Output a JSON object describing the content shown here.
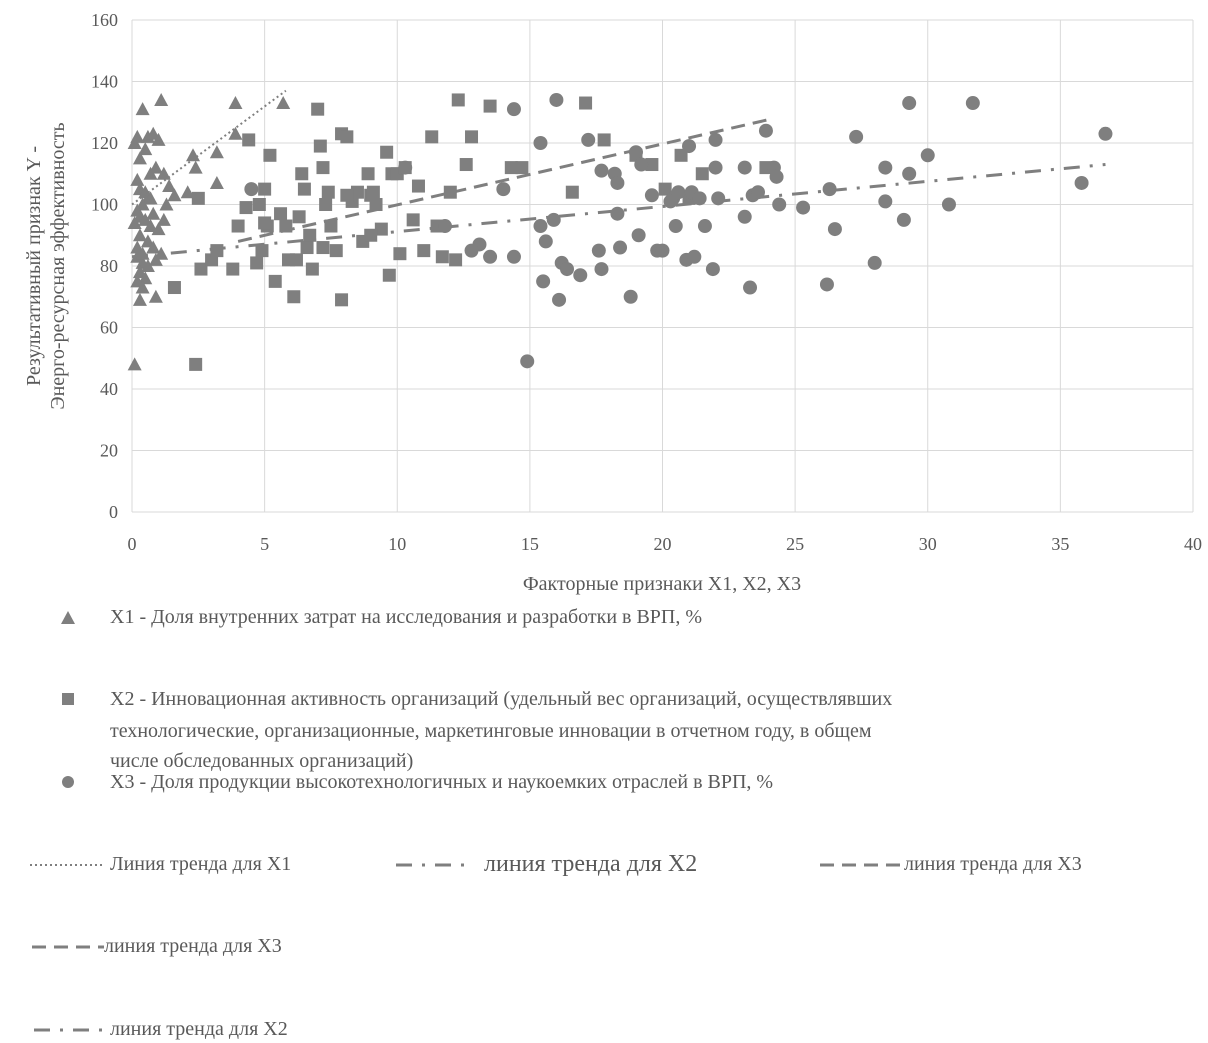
{
  "chart_data": {
    "type": "scatter",
    "xlabel": "Факторные признаки X1, X2, X3",
    "ylabel_lines": [
      "Результативный признак Y -",
      "Энерго-ресурсная  эффективность"
    ],
    "xlim": [
      0,
      40
    ],
    "ylim": [
      0,
      160
    ],
    "xticks": [
      0,
      5,
      10,
      15,
      20,
      25,
      30,
      35,
      40
    ],
    "yticks": [
      0,
      20,
      40,
      60,
      80,
      100,
      120,
      140,
      160
    ],
    "grid": true,
    "legend_position": "bottom",
    "series": [
      {
        "name": "X1 - Доля внутренних  затрат на исследования и разработки в  ВРП, %",
        "marker": "triangle",
        "color": "#7f7f7f",
        "points": [
          [
            0.1,
            120
          ],
          [
            0.2,
            122
          ],
          [
            0.3,
            115
          ],
          [
            0.4,
            131
          ],
          [
            0.6,
            122
          ],
          [
            0.8,
            123
          ],
          [
            1.0,
            121
          ],
          [
            1.1,
            134
          ],
          [
            0.5,
            118
          ],
          [
            0.7,
            110
          ],
          [
            0.2,
            108
          ],
          [
            0.3,
            105
          ],
          [
            0.5,
            104
          ],
          [
            0.6,
            102
          ],
          [
            0.9,
            112
          ],
          [
            1.2,
            110
          ],
          [
            1.4,
            106
          ],
          [
            1.6,
            103
          ],
          [
            0.4,
            100
          ],
          [
            0.2,
            98
          ],
          [
            0.3,
            96
          ],
          [
            0.5,
            95
          ],
          [
            0.7,
            93
          ],
          [
            1.0,
            92
          ],
          [
            1.2,
            95
          ],
          [
            0.1,
            94
          ],
          [
            0.3,
            90
          ],
          [
            0.6,
            88
          ],
          [
            0.8,
            86
          ],
          [
            1.1,
            84
          ],
          [
            0.2,
            83
          ],
          [
            0.4,
            81
          ],
          [
            0.6,
            80
          ],
          [
            0.9,
            82
          ],
          [
            0.3,
            78
          ],
          [
            0.5,
            76
          ],
          [
            0.2,
            75
          ],
          [
            0.4,
            73
          ],
          [
            0.3,
            69
          ],
          [
            0.9,
            70
          ],
          [
            0.1,
            48
          ],
          [
            2.3,
            116
          ],
          [
            2.1,
            104
          ],
          [
            2.4,
            112
          ],
          [
            3.2,
            117
          ],
          [
            3.2,
            107
          ],
          [
            3.9,
            123
          ],
          [
            3.9,
            133
          ],
          [
            5.7,
            133
          ],
          [
            0.2,
            86
          ],
          [
            0.4,
            84
          ],
          [
            0.7,
            102
          ],
          [
            1.3,
            100
          ],
          [
            0.8,
            97
          ]
        ]
      },
      {
        "name": "X2 - Инновационная активность организаций (удельный вес организаций, осуществлявших технологические, организационные, маркетинговые инновации в отчетном году, в общем числе обследованных организаций)",
        "marker": "square",
        "color": "#7f7f7f",
        "points": [
          [
            2.4,
            48
          ],
          [
            2.5,
            102
          ],
          [
            2.6,
            79
          ],
          [
            3.0,
            82
          ],
          [
            1.6,
            73
          ],
          [
            3.2,
            85
          ],
          [
            3.8,
            79
          ],
          [
            4.0,
            93
          ],
          [
            4.3,
            99
          ],
          [
            4.4,
            121
          ],
          [
            4.8,
            100
          ],
          [
            5.0,
            105
          ],
          [
            4.9,
            85
          ],
          [
            5.1,
            93
          ],
          [
            5.2,
            116
          ],
          [
            5.4,
            75
          ],
          [
            5.6,
            97
          ],
          [
            5.8,
            93
          ],
          [
            6.1,
            70
          ],
          [
            6.2,
            82
          ],
          [
            6.3,
            96
          ],
          [
            6.4,
            110
          ],
          [
            6.5,
            105
          ],
          [
            6.6,
            86
          ],
          [
            6.8,
            79
          ],
          [
            7.0,
            131
          ],
          [
            7.1,
            119
          ],
          [
            7.2,
            112
          ],
          [
            7.3,
            100
          ],
          [
            7.4,
            104
          ],
          [
            7.5,
            93
          ],
          [
            7.2,
            86
          ],
          [
            7.9,
            69
          ],
          [
            7.9,
            123
          ],
          [
            8.1,
            122
          ],
          [
            8.3,
            101
          ],
          [
            8.5,
            104
          ],
          [
            8.7,
            88
          ],
          [
            8.9,
            110
          ],
          [
            9.0,
            103
          ],
          [
            9.2,
            100
          ],
          [
            9.4,
            92
          ],
          [
            9.6,
            117
          ],
          [
            9.8,
            110
          ],
          [
            9.7,
            77
          ],
          [
            10.0,
            110
          ],
          [
            10.3,
            112
          ],
          [
            10.6,
            95
          ],
          [
            10.8,
            106
          ],
          [
            11.0,
            85
          ],
          [
            11.3,
            122
          ],
          [
            11.7,
            83
          ],
          [
            12.0,
            104
          ],
          [
            12.3,
            134
          ],
          [
            12.6,
            113
          ],
          [
            12.8,
            122
          ],
          [
            13.5,
            132
          ],
          [
            14.3,
            112
          ],
          [
            14.7,
            112
          ],
          [
            16.6,
            104
          ],
          [
            17.1,
            133
          ],
          [
            17.8,
            121
          ],
          [
            19.0,
            116
          ],
          [
            19.6,
            113
          ],
          [
            20.1,
            105
          ],
          [
            20.7,
            116
          ],
          [
            21.0,
            102
          ],
          [
            21.5,
            110
          ],
          [
            23.9,
            112
          ],
          [
            5.0,
            94
          ],
          [
            5.9,
            82
          ],
          [
            9.1,
            104
          ],
          [
            7.7,
            85
          ],
          [
            8.1,
            103
          ],
          [
            4.7,
            81
          ],
          [
            6.7,
            90
          ],
          [
            9.0,
            90
          ],
          [
            11.5,
            93
          ],
          [
            12.2,
            82
          ],
          [
            10.1,
            84
          ]
        ]
      },
      {
        "name": "X3 - Доля продукции высокотехнологичных и наукоемких  отраслей в ВРП, %",
        "marker": "circle",
        "color": "#7f7f7f",
        "points": [
          [
            4.5,
            105
          ],
          [
            10.3,
            112
          ],
          [
            11.8,
            93
          ],
          [
            13.1,
            87
          ],
          [
            13.5,
            83
          ],
          [
            14.0,
            105
          ],
          [
            14.4,
            83
          ],
          [
            14.4,
            131
          ],
          [
            14.9,
            49
          ],
          [
            15.4,
            120
          ],
          [
            15.4,
            93
          ],
          [
            15.5,
            75
          ],
          [
            15.6,
            88
          ],
          [
            15.9,
            95
          ],
          [
            16.0,
            134
          ],
          [
            16.2,
            81
          ],
          [
            16.1,
            69
          ],
          [
            16.4,
            79
          ],
          [
            16.9,
            77
          ],
          [
            17.2,
            121
          ],
          [
            17.6,
            85
          ],
          [
            17.7,
            79
          ],
          [
            17.7,
            111
          ],
          [
            18.2,
            110
          ],
          [
            18.3,
            107
          ],
          [
            18.3,
            97
          ],
          [
            18.4,
            86
          ],
          [
            18.8,
            70
          ],
          [
            19.0,
            117
          ],
          [
            19.1,
            90
          ],
          [
            19.2,
            113
          ],
          [
            19.6,
            103
          ],
          [
            19.8,
            85
          ],
          [
            20.0,
            85
          ],
          [
            20.4,
            102
          ],
          [
            20.5,
            93
          ],
          [
            20.6,
            104
          ],
          [
            20.9,
            82
          ],
          [
            21.0,
            119
          ],
          [
            21.1,
            104
          ],
          [
            21.2,
            83
          ],
          [
            21.4,
            102
          ],
          [
            21.6,
            93
          ],
          [
            21.9,
            79
          ],
          [
            22.0,
            121
          ],
          [
            22.0,
            112
          ],
          [
            23.1,
            112
          ],
          [
            23.1,
            96
          ],
          [
            23.3,
            73
          ],
          [
            23.4,
            103
          ],
          [
            23.6,
            104
          ],
          [
            23.9,
            124
          ],
          [
            24.2,
            112
          ],
          [
            24.3,
            109
          ],
          [
            24.4,
            100
          ],
          [
            25.3,
            99
          ],
          [
            26.2,
            74
          ],
          [
            26.3,
            105
          ],
          [
            26.5,
            92
          ],
          [
            27.3,
            122
          ],
          [
            28.0,
            81
          ],
          [
            28.4,
            112
          ],
          [
            28.4,
            101
          ],
          [
            29.1,
            95
          ],
          [
            29.3,
            110
          ],
          [
            29.3,
            133
          ],
          [
            30.0,
            116
          ],
          [
            30.8,
            100
          ],
          [
            31.7,
            133
          ],
          [
            35.8,
            107
          ],
          [
            36.7,
            123
          ],
          [
            20.3,
            101
          ],
          [
            22.1,
            102
          ],
          [
            12.8,
            85
          ]
        ]
      }
    ],
    "trendlines": [
      {
        "name": "Линия тренда для X1",
        "style": "dotted",
        "from": [
          0,
          100
        ],
        "to": [
          5.8,
          137
        ]
      },
      {
        "name": "линия тренда для X2",
        "style": "dash-dot",
        "from": [
          0,
          83
        ],
        "to": [
          36.7,
          113
        ]
      },
      {
        "name": "линия тренда для X3",
        "style": "dashed",
        "from": [
          4,
          88
        ],
        "to": [
          24.2,
          128
        ]
      }
    ]
  },
  "legend": {
    "x1_label": "X1 - Доля внутренних  затрат на исследования и разработки в  ВРП, %",
    "x2_label_lines": [
      "X2 - Инновационная активность организаций (удельный вес организаций, осуществлявших",
      "технологические, организационные, маркетинговые инновации в отчетном году, в общем",
      "числе обследованных организаций)"
    ],
    "x3_label": "X3 - Доля продукции высокотехнологичных и наукоемких  отраслей в ВРП, %",
    "trend_x1_label": "Линия тренда для X1",
    "trend_x2_label": "линия тренда для X2",
    "trend_x3_label": "линия тренда для X3",
    "trend_x3_label_repeat": "линия тренда для X3",
    "trend_x2_label_repeat": "линия тренда для X2"
  }
}
